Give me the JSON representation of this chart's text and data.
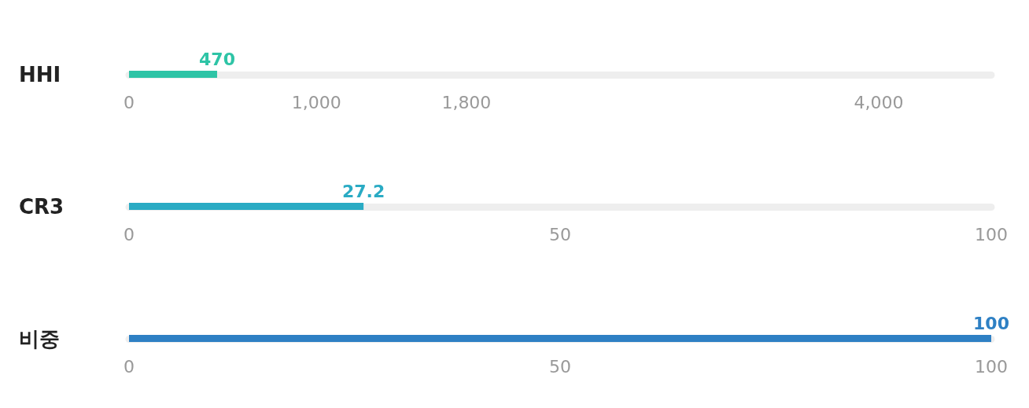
{
  "chart_data": [
    {
      "type": "bar",
      "orientation": "horizontal",
      "categories": [
        "HHI"
      ],
      "values": [
        470
      ],
      "color": "#2ec4a6",
      "xlim": [
        0,
        4600
      ],
      "xticks": [
        0,
        {
          "value": 1000,
          "label": "1,000"
        },
        {
          "value": 1800,
          "label": "1,800"
        },
        {
          "value": 4000,
          "label": "4,000"
        }
      ],
      "data_labels": true
    },
    {
      "type": "bar",
      "orientation": "horizontal",
      "categories": [
        "CR3"
      ],
      "values": [
        27.2
      ],
      "color": "#2aabc4",
      "xlim": [
        0,
        100
      ],
      "xticks": [
        0,
        50,
        100
      ],
      "data_labels": true
    },
    {
      "type": "bar",
      "orientation": "horizontal",
      "categories": [
        "비중"
      ],
      "values": [
        100
      ],
      "color": "#2e80c4",
      "xlim": [
        0,
        100
      ],
      "xticks": [
        0,
        50,
        100
      ],
      "data_labels": true
    }
  ]
}
